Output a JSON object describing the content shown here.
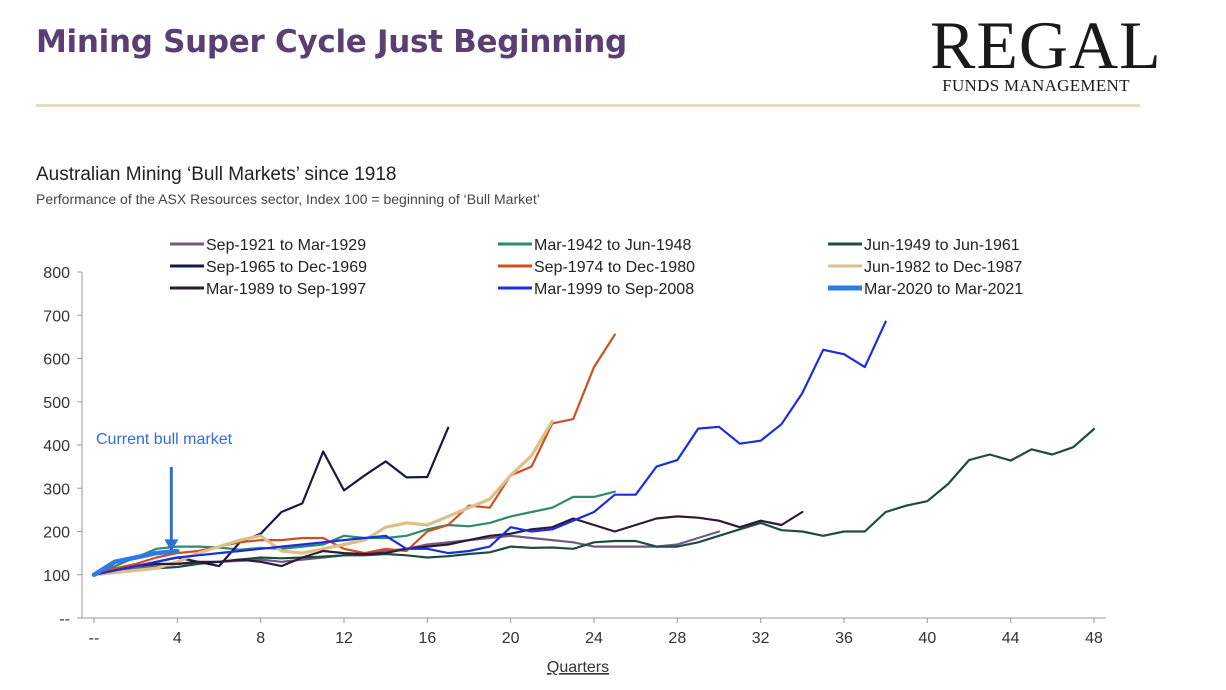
{
  "header": {
    "title": "Mining Super Cycle Just Beginning",
    "logo_main": "REGAL",
    "logo_sub": "FUNDS MANAGEMENT"
  },
  "chart_data": {
    "type": "line",
    "title": "Australian Mining ‘Bull Markets’ since 1918",
    "subtitle": "Performance of the ASX Resources sector, Index 100 = beginning of ‘Bull Market’",
    "xlabel": "Quarters",
    "ylabel": "",
    "xlim": [
      0,
      48
    ],
    "ylim": [
      0,
      800
    ],
    "x_ticks": [
      0,
      4,
      8,
      12,
      16,
      20,
      24,
      28,
      32,
      36,
      40,
      44,
      48
    ],
    "x_tick_labels": [
      "--",
      "4",
      "8",
      "12",
      "16",
      "20",
      "24",
      "28",
      "32",
      "36",
      "40",
      "44",
      "48"
    ],
    "y_ticks": [
      0,
      100,
      200,
      300,
      400,
      500,
      600,
      700,
      800
    ],
    "y_tick_labels": [
      "--",
      "100",
      "200",
      "300",
      "400",
      "500",
      "600",
      "700",
      "800"
    ],
    "grid": false,
    "legend_position": "top",
    "annotation": {
      "text": "Current bull market",
      "x": 4,
      "y": 205
    },
    "series": [
      {
        "name": "Sep-1921 to Mar-1929",
        "color": "#6e5a86",
        "values": [
          100,
          110,
          115,
          120,
          125,
          128,
          130,
          132,
          135,
          130,
          135,
          140,
          145,
          150,
          155,
          160,
          170,
          175,
          180,
          185,
          190,
          185,
          180,
          175,
          165,
          165,
          165,
          165,
          170,
          185,
          200
        ]
      },
      {
        "name": "Mar-1942 to Jun-1948",
        "color": "#2e8a6a",
        "values": [
          100,
          120,
          140,
          160,
          165,
          165,
          163,
          158,
          162,
          160,
          165,
          170,
          190,
          185,
          185,
          190,
          205,
          215,
          212,
          220,
          235,
          245,
          255,
          280,
          280,
          292
        ]
      },
      {
        "name": "Jun-1949 to Jun-1961",
        "color": "#1e4d40",
        "values": [
          100,
          105,
          110,
          115,
          118,
          125,
          130,
          135,
          140,
          138,
          140,
          142,
          145,
          145,
          148,
          145,
          140,
          143,
          148,
          152,
          165,
          162,
          163,
          160,
          175,
          178,
          178,
          165,
          165,
          175,
          190,
          205,
          220,
          203,
          200,
          190,
          200,
          200,
          245,
          260,
          270,
          310,
          365,
          378,
          364,
          390,
          378,
          395,
          437
        ]
      },
      {
        "name": "Sep-1965 to Dec-1969",
        "color": "#141a45",
        "values": [
          100,
          110,
          120,
          130,
          140,
          130,
          120,
          175,
          195,
          245,
          265,
          385,
          295,
          330,
          362,
          325,
          326,
          440
        ]
      },
      {
        "name": "Sep-1974 to Dec-1980",
        "color": "#d04e20",
        "values": [
          100,
          115,
          125,
          140,
          150,
          155,
          165,
          175,
          180,
          180,
          185,
          185,
          160,
          150,
          160,
          155,
          200,
          215,
          260,
          255,
          330,
          350,
          450,
          460,
          580,
          655
        ]
      },
      {
        "name": "Jun-1982 to Dec-1987",
        "color": "#dcc08a",
        "values": [
          100,
          105,
          110,
          115,
          130,
          150,
          165,
          180,
          190,
          155,
          150,
          160,
          170,
          180,
          210,
          220,
          215,
          235,
          255,
          275,
          330,
          375,
          455
        ]
      },
      {
        "name": "Mar-1989 to Sep-1997",
        "color": "#2d1a33",
        "values": [
          100,
          110,
          120,
          125,
          125,
          130,
          130,
          135,
          130,
          120,
          140,
          155,
          150,
          148,
          150,
          160,
          165,
          170,
          180,
          190,
          195,
          205,
          210,
          230,
          215,
          200,
          215,
          230,
          235,
          232,
          225,
          210,
          225,
          215,
          245
        ]
      },
      {
        "name": "Mar-1999 to Sep-2008",
        "color": "#1a2edc",
        "values": [
          100,
          110,
          120,
          130,
          140,
          145,
          150,
          155,
          160,
          165,
          170,
          175,
          180,
          185,
          190,
          160,
          160,
          150,
          155,
          165,
          210,
          200,
          205,
          225,
          245,
          285,
          285,
          350,
          365,
          438,
          442,
          403,
          410,
          448,
          520,
          620,
          610,
          580,
          685
        ]
      },
      {
        "name": "Mar-2020 to Mar-2021",
        "color": "#2f7ae5",
        "values": [
          100,
          130,
          140,
          150,
          155
        ]
      }
    ]
  }
}
